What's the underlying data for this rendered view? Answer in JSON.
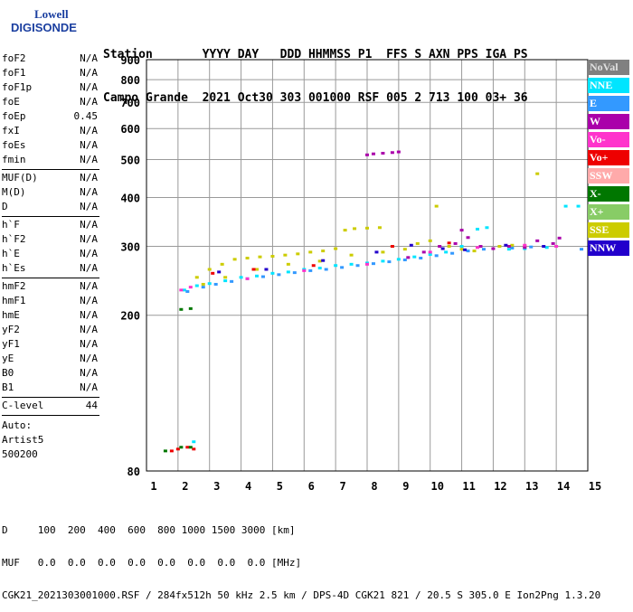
{
  "logo": {
    "line1": "Lowell",
    "line2": "DIGISONDE"
  },
  "header": {
    "row1": "Station       YYYY DAY   DDD HHMMSS P1  FFS S AXN PPS IGA PS",
    "row2": "Campo Grande  2021 Oct30 303 001000 RSF 005 2 713 100 03+ 36"
  },
  "params": {
    "group1": [
      {
        "name": "foF2",
        "value": "N/A"
      },
      {
        "name": "foF1",
        "value": "N/A"
      },
      {
        "name": "foF1p",
        "value": "N/A"
      },
      {
        "name": "foE",
        "value": "N/A"
      },
      {
        "name": "foEp",
        "value": "0.45"
      },
      {
        "name": "fxI",
        "value": "N/A"
      },
      {
        "name": "foEs",
        "value": "N/A"
      },
      {
        "name": "fmin",
        "value": "N/A"
      }
    ],
    "group2": [
      {
        "name": "MUF(D)",
        "value": "N/A"
      },
      {
        "name": "M(D)",
        "value": "N/A"
      },
      {
        "name": "D",
        "value": "N/A"
      }
    ],
    "group3": [
      {
        "name": "h`F",
        "value": "N/A"
      },
      {
        "name": "h`F2",
        "value": "N/A"
      },
      {
        "name": "h`E",
        "value": "N/A"
      },
      {
        "name": "h`Es",
        "value": "N/A"
      }
    ],
    "group4": [
      {
        "name": "hmF2",
        "value": "N/A"
      },
      {
        "name": "hmF1",
        "value": "N/A"
      },
      {
        "name": "hmE",
        "value": "N/A"
      },
      {
        "name": "yF2",
        "value": "N/A"
      },
      {
        "name": "yF1",
        "value": "N/A"
      },
      {
        "name": "yE",
        "value": "N/A"
      },
      {
        "name": "B0",
        "value": "N/A"
      },
      {
        "name": "B1",
        "value": "N/A"
      }
    ],
    "clevel": {
      "name": "C-level",
      "value": "44"
    },
    "auto": [
      "Auto:",
      "Artist5",
      "500200"
    ]
  },
  "legend": [
    {
      "label": "NoVal",
      "color": "#808080"
    },
    {
      "label": "NNE",
      "color": "#00e5ff"
    },
    {
      "label": "E",
      "color": "#3399ff"
    },
    {
      "label": "W",
      "color": "#aa00aa"
    },
    {
      "label": "Vo-",
      "color": "#ff33cc"
    },
    {
      "label": "Vo+",
      "color": "#ee0000"
    },
    {
      "label": "SSW",
      "color": "#ffaaaa"
    },
    {
      "label": "X-",
      "color": "#007700"
    },
    {
      "label": "X+",
      "color": "#88cc66"
    },
    {
      "label": "SSE",
      "color": "#cccc00"
    },
    {
      "label": "NNW",
      "color": "#2200cc"
    }
  ],
  "footer": {
    "d_row": "D     100  200  400  600  800 1000 1500 3000 [km]",
    "muf_row": "MUF   0.0  0.0  0.0  0.0  0.0  0.0  0.0  0.0 [MHz]",
    "info_row": "CGK21_2021303001000.RSF / 284fx512h 50 kHz 2.5 km / DPS-4D CGK21 821 / 20.5 S 305.0 E Ion2Png 1.3.20"
  },
  "chart_data": {
    "type": "scatter",
    "xlim": [
      1,
      15
    ],
    "ylim": [
      80,
      900
    ],
    "x_ticks": [
      1,
      2,
      3,
      4,
      5,
      6,
      7,
      8,
      9,
      10,
      11,
      12,
      13,
      14,
      15
    ],
    "y_ticks": [
      80,
      200,
      300,
      400,
      500,
      600,
      700,
      800,
      900
    ],
    "grid": true,
    "series": [
      {
        "name": "SSE",
        "color": "#cccc00",
        "points": [
          [
            2.6,
            250
          ],
          [
            3.0,
            262
          ],
          [
            3.4,
            270
          ],
          [
            3.8,
            278
          ],
          [
            4.2,
            280
          ],
          [
            4.6,
            282
          ],
          [
            5.0,
            283
          ],
          [
            5.4,
            285
          ],
          [
            5.8,
            287
          ],
          [
            6.2,
            290
          ],
          [
            6.6,
            292
          ],
          [
            7.0,
            296
          ],
          [
            7.3,
            330
          ],
          [
            7.6,
            333
          ],
          [
            8.0,
            334
          ],
          [
            8.4,
            335
          ],
          [
            8.8,
            300
          ],
          [
            9.2,
            295
          ],
          [
            9.6,
            305
          ],
          [
            10.0,
            310
          ],
          [
            10.2,
            380
          ],
          [
            10.6,
            300
          ],
          [
            11.0,
            295
          ],
          [
            11.4,
            292
          ],
          [
            12.2,
            300
          ],
          [
            12.6,
            302
          ],
          [
            13.0,
            300
          ],
          [
            13.4,
            460
          ],
          [
            2.8,
            240
          ],
          [
            3.5,
            250
          ],
          [
            4.5,
            262
          ],
          [
            5.5,
            270
          ],
          [
            6.5,
            275
          ],
          [
            7.5,
            285
          ],
          [
            8.5,
            290
          ]
        ]
      },
      {
        "name": "NNE",
        "color": "#00e5ff",
        "points": [
          [
            2.2,
            232
          ],
          [
            2.6,
            238
          ],
          [
            3.0,
            241
          ],
          [
            3.5,
            245
          ],
          [
            4.0,
            250
          ],
          [
            4.5,
            252
          ],
          [
            5.0,
            256
          ],
          [
            5.5,
            258
          ],
          [
            6.0,
            262
          ],
          [
            6.5,
            264
          ],
          [
            7.0,
            268
          ],
          [
            7.5,
            270
          ],
          [
            8.0,
            272
          ],
          [
            8.5,
            275
          ],
          [
            9.0,
            278
          ],
          [
            9.5,
            282
          ],
          [
            10.0,
            286
          ],
          [
            10.5,
            290
          ],
          [
            11.0,
            300
          ],
          [
            11.5,
            332
          ],
          [
            11.8,
            335
          ],
          [
            12.5,
            295
          ],
          [
            13.0,
            296
          ],
          [
            13.7,
            298
          ],
          [
            14.3,
            380
          ],
          [
            14.7,
            380
          ],
          [
            2.5,
            95
          ]
        ]
      },
      {
        "name": "E",
        "color": "#3399ff",
        "points": [
          [
            2.3,
            230
          ],
          [
            2.8,
            236
          ],
          [
            3.2,
            240
          ],
          [
            3.7,
            244
          ],
          [
            4.2,
            248
          ],
          [
            4.7,
            251
          ],
          [
            5.2,
            254
          ],
          [
            5.7,
            257
          ],
          [
            6.2,
            260
          ],
          [
            6.7,
            262
          ],
          [
            7.2,
            265
          ],
          [
            7.7,
            268
          ],
          [
            8.2,
            271
          ],
          [
            8.7,
            274
          ],
          [
            9.2,
            277
          ],
          [
            9.7,
            280
          ],
          [
            10.2,
            284
          ],
          [
            10.7,
            288
          ],
          [
            11.2,
            292
          ],
          [
            11.7,
            295
          ],
          [
            12.6,
            297
          ],
          [
            13.2,
            299
          ],
          [
            14.8,
            295
          ]
        ]
      },
      {
        "name": "W",
        "color": "#aa00aa",
        "points": [
          [
            8.0,
            514
          ],
          [
            8.2,
            517
          ],
          [
            8.5,
            519
          ],
          [
            8.8,
            521
          ],
          [
            9.0,
            523
          ],
          [
            9.3,
            281
          ],
          [
            9.8,
            290
          ],
          [
            10.3,
            300
          ],
          [
            10.8,
            305
          ],
          [
            11.0,
            330
          ],
          [
            11.2,
            316
          ],
          [
            11.6,
            300
          ],
          [
            12.0,
            296
          ],
          [
            12.5,
            300
          ],
          [
            13.0,
            298
          ],
          [
            13.4,
            310
          ],
          [
            13.9,
            305
          ],
          [
            14.1,
            315
          ]
        ]
      },
      {
        "name": "Vo-",
        "color": "#ff33cc",
        "points": [
          [
            2.1,
            232
          ],
          [
            2.4,
            236
          ],
          [
            4.2,
            248
          ],
          [
            6.0,
            260
          ],
          [
            8.0,
            270
          ],
          [
            10.0,
            290
          ],
          [
            11.5,
            298
          ],
          [
            13.0,
            302
          ],
          [
            14.0,
            300
          ]
        ]
      },
      {
        "name": "Vo+",
        "color": "#ee0000",
        "points": [
          [
            1.8,
            90
          ],
          [
            2.0,
            91
          ],
          [
            2.3,
            92
          ],
          [
            2.5,
            91
          ],
          [
            3.1,
            256
          ],
          [
            4.4,
            262
          ],
          [
            6.3,
            268
          ],
          [
            8.8,
            300
          ],
          [
            10.6,
            306
          ]
        ]
      },
      {
        "name": "X-",
        "color": "#007700",
        "points": [
          [
            1.6,
            90
          ],
          [
            2.1,
            92
          ],
          [
            2.4,
            92
          ],
          [
            2.1,
            207
          ],
          [
            2.4,
            208
          ]
        ]
      },
      {
        "name": "NNW",
        "color": "#2200cc",
        "points": [
          [
            3.3,
            258
          ],
          [
            4.8,
            262
          ],
          [
            6.6,
            276
          ],
          [
            8.3,
            290
          ],
          [
            9.4,
            302
          ],
          [
            10.4,
            296
          ],
          [
            11.1,
            294
          ],
          [
            12.4,
            302
          ],
          [
            13.6,
            300
          ]
        ]
      }
    ]
  }
}
